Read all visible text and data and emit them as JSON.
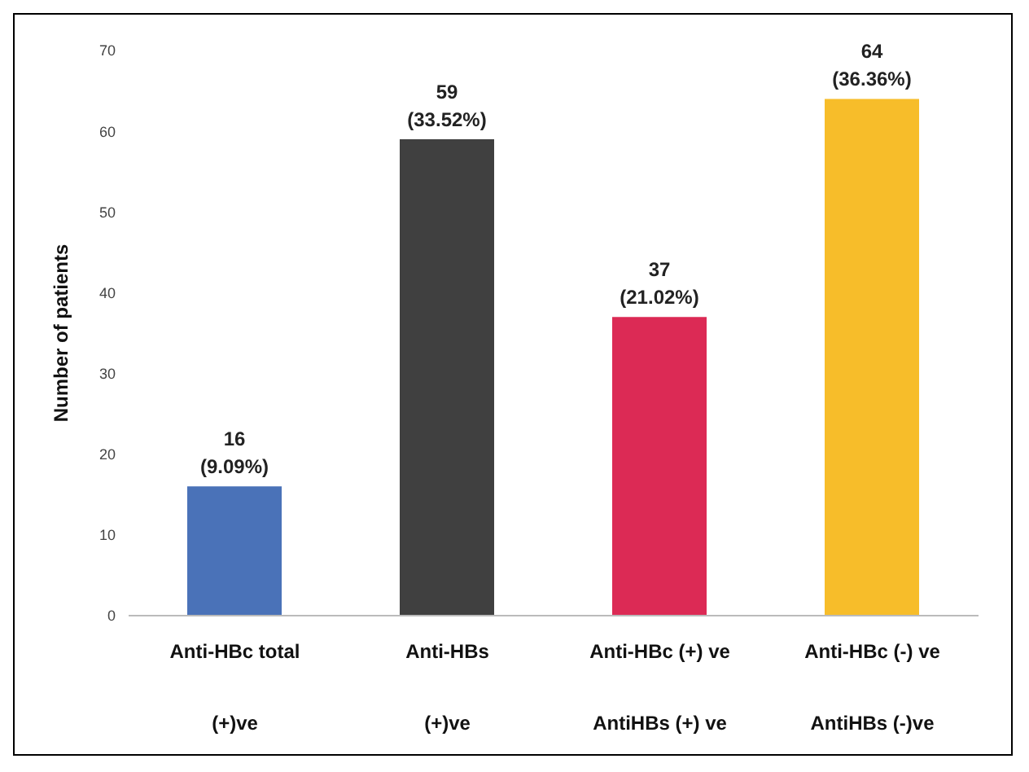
{
  "chart_data": {
    "type": "bar",
    "ylabel": "Number of patients",
    "categories": [
      "Anti-HBc total\n(+)ve",
      "Anti-HBs\n(+)ve",
      "Anti-HBc (+) ve\nAntiHBs (+) ve",
      "Anti-HBc (-) ve\nAntiHBs (-)ve"
    ],
    "values": [
      16,
      59,
      37,
      64
    ],
    "colors": [
      "#4a72b8",
      "#404040",
      "#dc2a55",
      "#f7bd2a"
    ],
    "value_labels": [
      "16\n(9.09%)",
      "59\n(33.52%)",
      "37\n(21.02%)",
      "64\n(36.36%)"
    ],
    "ylim": [
      0,
      70
    ],
    "yticks": [
      0,
      10,
      20,
      30,
      40,
      50,
      60,
      70
    ],
    "grid": false,
    "legend": false
  }
}
